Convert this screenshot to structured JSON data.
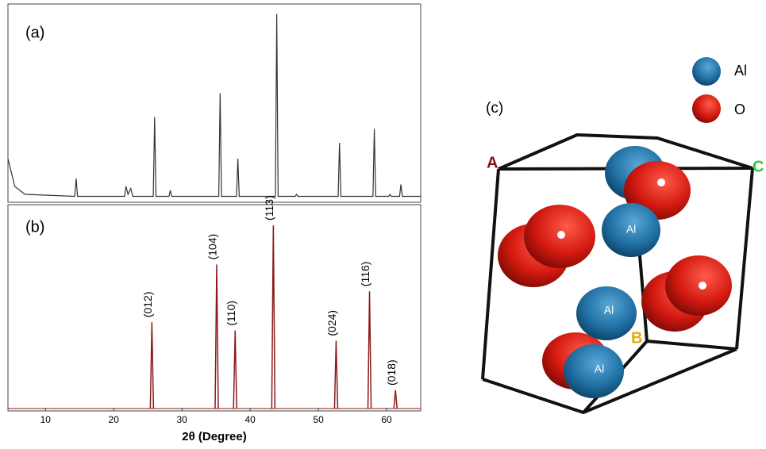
{
  "chart_data": [
    {
      "type": "line",
      "title": "(a)",
      "color": "#333333",
      "xlim": [
        4.5,
        65
      ],
      "ylim": [
        0,
        100
      ],
      "x": [
        4.5,
        5.5,
        7,
        14.3,
        14.5,
        14.7,
        21.6,
        21.8,
        22.1,
        22.5,
        22.8,
        25.8,
        26.0,
        26.2,
        28.1,
        28.3,
        28.5,
        35.4,
        35.6,
        35.8,
        38.0,
        38.2,
        38.4,
        43.7,
        43.9,
        44.1,
        46.6,
        46.8,
        47.0,
        52.9,
        53.1,
        53.3,
        58.0,
        58.2,
        58.4,
        60.3,
        60.5,
        60.7,
        61.9,
        62.1,
        62.3,
        65
      ],
      "values": [
        22,
        8,
        4,
        3,
        12,
        3,
        3,
        8,
        4,
        7,
        3,
        3,
        43,
        3,
        3,
        6,
        3,
        3,
        55,
        3,
        3,
        22,
        3,
        3,
        95,
        3,
        3,
        4,
        3,
        3,
        30,
        3,
        3,
        37,
        3,
        3,
        4,
        3,
        3,
        9,
        3,
        3
      ]
    },
    {
      "type": "stick",
      "title": "(b)",
      "color": "#8b1a1a",
      "xlim": [
        4.5,
        65
      ],
      "ylim": [
        0,
        100
      ],
      "xticks": [
        10,
        20,
        30,
        40,
        50,
        60
      ],
      "xlabel": "2θ (Degree)",
      "x": [
        25.6,
        35.1,
        37.8,
        43.4,
        52.6,
        57.5,
        61.3
      ],
      "values": [
        43,
        71,
        39,
        90,
        34,
        58,
        10
      ],
      "labels": [
        "(012)",
        "(104)",
        "(110)",
        "(113)",
        "(024)",
        "(116)",
        "(018)"
      ]
    }
  ],
  "structure": {
    "label": "(c)",
    "legend": [
      {
        "label": "Al"
      },
      {
        "label": "O"
      }
    ],
    "corners": [
      {
        "label": "A"
      },
      {
        "label": "C"
      },
      {
        "label": "B"
      }
    ],
    "atoms": [
      {
        "label": "Al"
      },
      {
        "label": "Al"
      },
      {
        "label": "Al"
      }
    ]
  }
}
